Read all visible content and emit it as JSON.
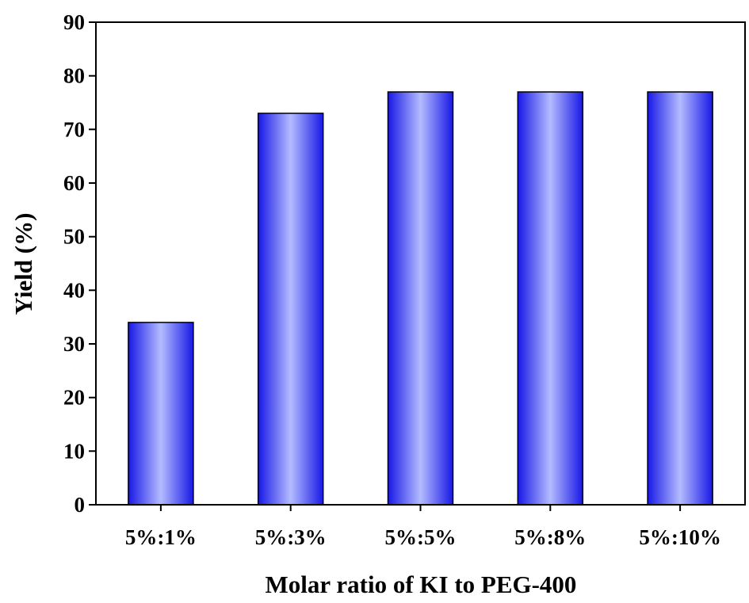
{
  "chart_data": {
    "type": "bar",
    "title": "",
    "xlabel": "Molar ratio of KI to PEG-400",
    "ylabel": "Yield (%)",
    "categories": [
      "5%:1%",
      "5%:3%",
      "5%:5%",
      "5%:8%",
      "5%:10%"
    ],
    "values": [
      34,
      73,
      77,
      77,
      77
    ],
    "ylim": [
      0,
      90
    ],
    "yticks": [
      "0",
      "10",
      "20",
      "30",
      "40",
      "50",
      "60",
      "70",
      "80",
      "90"
    ],
    "grid": false,
    "legend": "none",
    "colors": {
      "bar_edge": "#1818e6",
      "bar_center": "#b4bcff",
      "bar_outline": "#000000",
      "axis": "#000000"
    }
  }
}
